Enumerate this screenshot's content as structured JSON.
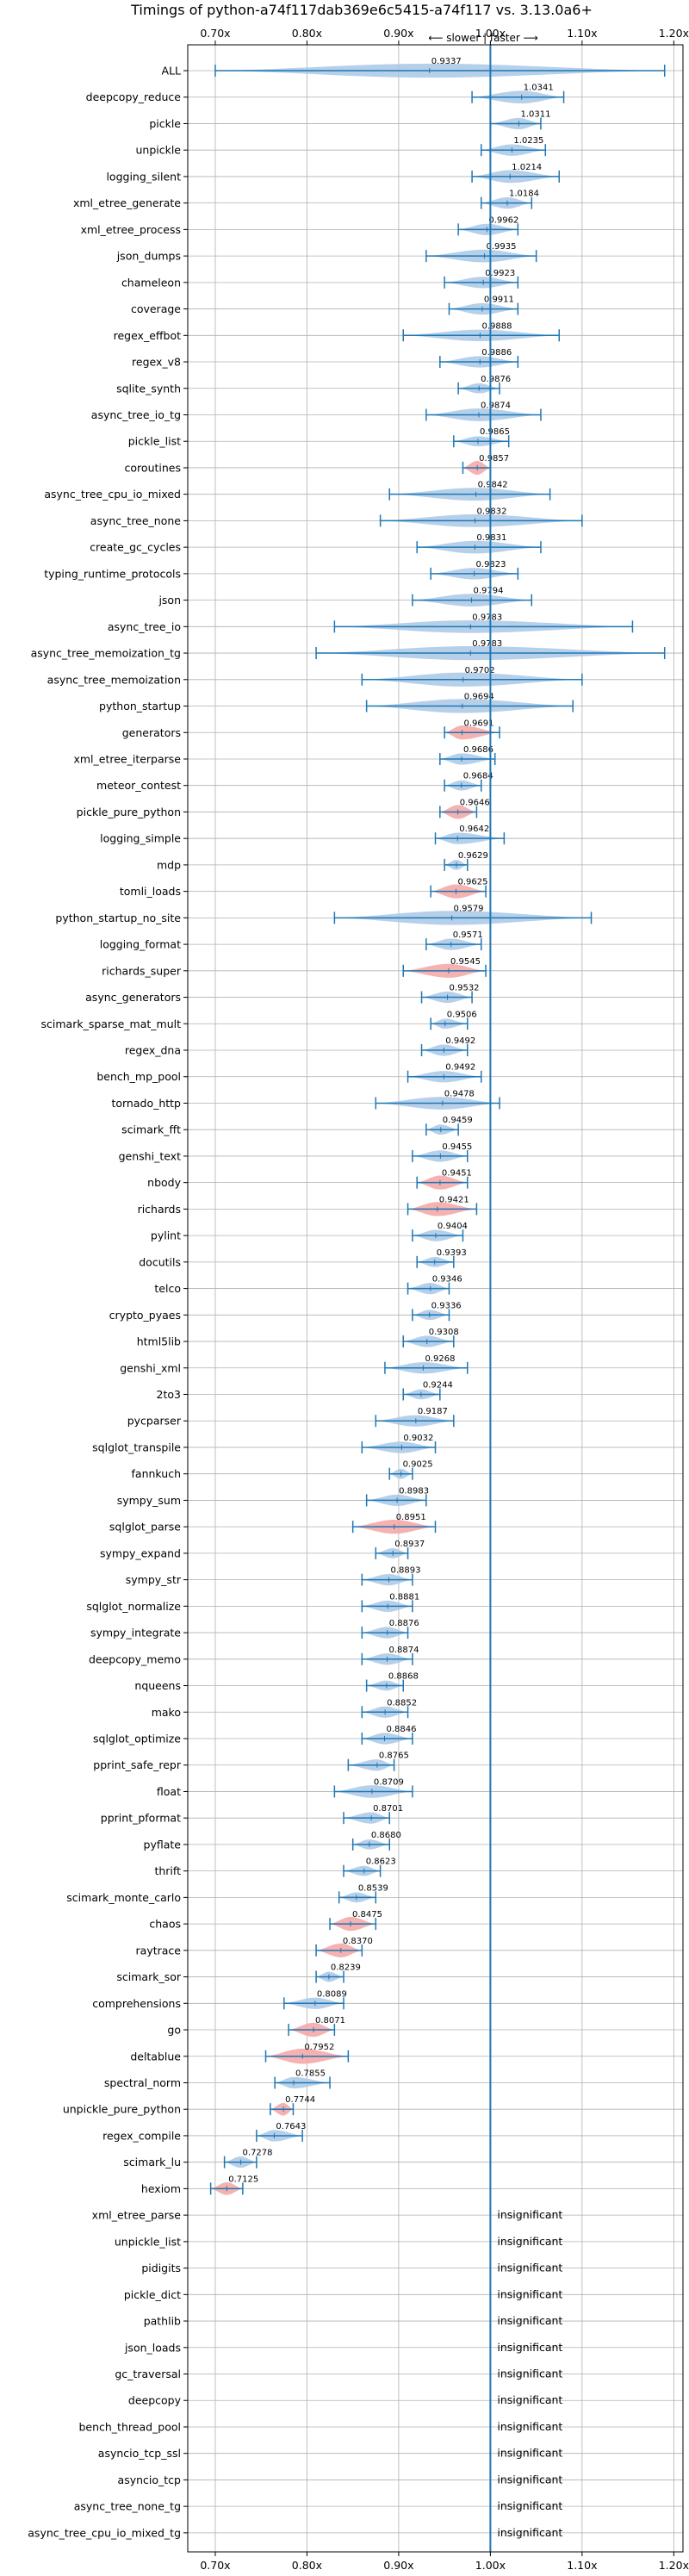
{
  "chart_data": {
    "type": "violin",
    "title": "Timings of python-a74f117dab369e6c5415-a74f117 vs. 3.13.0a6+",
    "direction_label": "⟵ slower | faster ⟶",
    "xlim": [
      0.67,
      1.21
    ],
    "x_ticks": [
      0.7,
      0.8,
      0.9,
      1.0,
      1.1,
      1.2
    ],
    "x_tick_labels": [
      "0.70x",
      "0.80x",
      "0.90x",
      "1.00x",
      "1.10x",
      "1.20x"
    ],
    "grid": true,
    "insignificant_label": "insignificant",
    "benchmarks": [
      {
        "name": "ALL",
        "value": 0.9337,
        "min": 0.7,
        "max": 1.19,
        "width": 0.55,
        "color": "blue"
      },
      {
        "name": "deepcopy_reduce",
        "value": 1.0341,
        "min": 0.98,
        "max": 1.08,
        "width": 0.5,
        "color": "blue"
      },
      {
        "name": "pickle",
        "value": 1.0311,
        "min": 1.0,
        "max": 1.055,
        "width": 0.45,
        "color": "blue"
      },
      {
        "name": "unpickle",
        "value": 1.0235,
        "min": 0.99,
        "max": 1.06,
        "width": 0.45,
        "color": "blue"
      },
      {
        "name": "logging_silent",
        "value": 1.0214,
        "min": 0.98,
        "max": 1.075,
        "width": 0.5,
        "color": "blue"
      },
      {
        "name": "xml_etree_generate",
        "value": 1.0184,
        "min": 0.99,
        "max": 1.045,
        "width": 0.45,
        "color": "blue"
      },
      {
        "name": "xml_etree_process",
        "value": 0.9962,
        "min": 0.965,
        "max": 1.03,
        "width": 0.45,
        "color": "blue"
      },
      {
        "name": "json_dumps",
        "value": 0.9935,
        "min": 0.93,
        "max": 1.05,
        "width": 0.5,
        "color": "blue"
      },
      {
        "name": "chameleon",
        "value": 0.9923,
        "min": 0.95,
        "max": 1.03,
        "width": 0.45,
        "color": "blue"
      },
      {
        "name": "coverage",
        "value": 0.9911,
        "min": 0.955,
        "max": 1.03,
        "width": 0.45,
        "color": "blue"
      },
      {
        "name": "regex_effbot",
        "value": 0.9888,
        "min": 0.905,
        "max": 1.075,
        "width": 0.45,
        "color": "blue"
      },
      {
        "name": "regex_v8",
        "value": 0.9886,
        "min": 0.945,
        "max": 1.03,
        "width": 0.45,
        "color": "blue"
      },
      {
        "name": "sqlite_synth",
        "value": 0.9876,
        "min": 0.965,
        "max": 1.01,
        "width": 0.4,
        "color": "blue"
      },
      {
        "name": "async_tree_io_tg",
        "value": 0.9874,
        "min": 0.93,
        "max": 1.055,
        "width": 0.5,
        "color": "blue"
      },
      {
        "name": "pickle_list",
        "value": 0.9865,
        "min": 0.96,
        "max": 1.02,
        "width": 0.4,
        "color": "blue"
      },
      {
        "name": "coroutines",
        "value": 0.9857,
        "min": 0.97,
        "max": 1.0,
        "width": 0.55,
        "color": "red"
      },
      {
        "name": "async_tree_cpu_io_mixed",
        "value": 0.9842,
        "min": 0.89,
        "max": 1.065,
        "width": 0.5,
        "color": "blue"
      },
      {
        "name": "async_tree_none",
        "value": 0.9832,
        "min": 0.88,
        "max": 1.1,
        "width": 0.5,
        "color": "blue"
      },
      {
        "name": "create_gc_cycles",
        "value": 0.9831,
        "min": 0.92,
        "max": 1.055,
        "width": 0.5,
        "color": "blue"
      },
      {
        "name": "typing_runtime_protocols",
        "value": 0.9823,
        "min": 0.935,
        "max": 1.03,
        "width": 0.45,
        "color": "blue"
      },
      {
        "name": "json",
        "value": 0.9794,
        "min": 0.915,
        "max": 1.045,
        "width": 0.5,
        "color": "blue"
      },
      {
        "name": "async_tree_io",
        "value": 0.9783,
        "min": 0.83,
        "max": 1.155,
        "width": 0.5,
        "color": "blue"
      },
      {
        "name": "async_tree_memoization_tg",
        "value": 0.9783,
        "min": 0.81,
        "max": 1.19,
        "width": 0.55,
        "color": "blue"
      },
      {
        "name": "async_tree_memoization",
        "value": 0.9702,
        "min": 0.86,
        "max": 1.1,
        "width": 0.55,
        "color": "blue"
      },
      {
        "name": "python_startup",
        "value": 0.9694,
        "min": 0.865,
        "max": 1.09,
        "width": 0.55,
        "color": "blue"
      },
      {
        "name": "generators",
        "value": 0.9691,
        "min": 0.95,
        "max": 1.01,
        "width": 0.55,
        "color": "red"
      },
      {
        "name": "xml_etree_iterparse",
        "value": 0.9686,
        "min": 0.945,
        "max": 1.005,
        "width": 0.45,
        "color": "blue"
      },
      {
        "name": "meteor_contest",
        "value": 0.9684,
        "min": 0.95,
        "max": 0.99,
        "width": 0.4,
        "color": "blue"
      },
      {
        "name": "pickle_pure_python",
        "value": 0.9646,
        "min": 0.945,
        "max": 0.985,
        "width": 0.55,
        "color": "red"
      },
      {
        "name": "logging_simple",
        "value": 0.9642,
        "min": 0.94,
        "max": 1.015,
        "width": 0.45,
        "color": "blue"
      },
      {
        "name": "mdp",
        "value": 0.9629,
        "min": 0.95,
        "max": 0.975,
        "width": 0.4,
        "color": "blue"
      },
      {
        "name": "tomli_loads",
        "value": 0.9625,
        "min": 0.935,
        "max": 0.995,
        "width": 0.55,
        "color": "red"
      },
      {
        "name": "python_startup_no_site",
        "value": 0.9579,
        "min": 0.83,
        "max": 1.11,
        "width": 0.55,
        "color": "blue"
      },
      {
        "name": "logging_format",
        "value": 0.9571,
        "min": 0.93,
        "max": 0.99,
        "width": 0.45,
        "color": "blue"
      },
      {
        "name": "richards_super",
        "value": 0.9545,
        "min": 0.905,
        "max": 0.995,
        "width": 0.55,
        "color": "red"
      },
      {
        "name": "async_generators",
        "value": 0.9532,
        "min": 0.925,
        "max": 0.98,
        "width": 0.45,
        "color": "blue"
      },
      {
        "name": "scimark_sparse_mat_mult",
        "value": 0.9506,
        "min": 0.935,
        "max": 0.975,
        "width": 0.4,
        "color": "blue"
      },
      {
        "name": "regex_dna",
        "value": 0.9492,
        "min": 0.925,
        "max": 0.975,
        "width": 0.45,
        "color": "blue"
      },
      {
        "name": "bench_mp_pool",
        "value": 0.9492,
        "min": 0.91,
        "max": 0.99,
        "width": 0.45,
        "color": "blue"
      },
      {
        "name": "tornado_http",
        "value": 0.9478,
        "min": 0.875,
        "max": 1.01,
        "width": 0.5,
        "color": "blue"
      },
      {
        "name": "scimark_fft",
        "value": 0.9459,
        "min": 0.93,
        "max": 0.965,
        "width": 0.4,
        "color": "blue"
      },
      {
        "name": "genshi_text",
        "value": 0.9455,
        "min": 0.915,
        "max": 0.975,
        "width": 0.45,
        "color": "blue"
      },
      {
        "name": "nbody",
        "value": 0.9451,
        "min": 0.92,
        "max": 0.975,
        "width": 0.55,
        "color": "red"
      },
      {
        "name": "richards",
        "value": 0.9421,
        "min": 0.91,
        "max": 0.985,
        "width": 0.55,
        "color": "red"
      },
      {
        "name": "pylint",
        "value": 0.9404,
        "min": 0.915,
        "max": 0.97,
        "width": 0.45,
        "color": "blue"
      },
      {
        "name": "docutils",
        "value": 0.9393,
        "min": 0.92,
        "max": 0.96,
        "width": 0.4,
        "color": "blue"
      },
      {
        "name": "telco",
        "value": 0.9346,
        "min": 0.91,
        "max": 0.955,
        "width": 0.45,
        "color": "blue"
      },
      {
        "name": "crypto_pyaes",
        "value": 0.9336,
        "min": 0.915,
        "max": 0.955,
        "width": 0.4,
        "color": "blue"
      },
      {
        "name": "html5lib",
        "value": 0.9308,
        "min": 0.905,
        "max": 0.96,
        "width": 0.45,
        "color": "blue"
      },
      {
        "name": "genshi_xml",
        "value": 0.9268,
        "min": 0.885,
        "max": 0.975,
        "width": 0.45,
        "color": "blue"
      },
      {
        "name": "2to3",
        "value": 0.9244,
        "min": 0.905,
        "max": 0.945,
        "width": 0.4,
        "color": "blue"
      },
      {
        "name": "pycparser",
        "value": 0.9187,
        "min": 0.875,
        "max": 0.96,
        "width": 0.45,
        "color": "blue"
      },
      {
        "name": "sqlglot_transpile",
        "value": 0.9032,
        "min": 0.86,
        "max": 0.94,
        "width": 0.45,
        "color": "blue"
      },
      {
        "name": "fannkuch",
        "value": 0.9025,
        "min": 0.89,
        "max": 0.915,
        "width": 0.4,
        "color": "blue"
      },
      {
        "name": "sympy_sum",
        "value": 0.8983,
        "min": 0.865,
        "max": 0.93,
        "width": 0.45,
        "color": "blue"
      },
      {
        "name": "sqlglot_parse",
        "value": 0.8951,
        "min": 0.85,
        "max": 0.94,
        "width": 0.55,
        "color": "red"
      },
      {
        "name": "sympy_expand",
        "value": 0.8937,
        "min": 0.875,
        "max": 0.91,
        "width": 0.4,
        "color": "blue"
      },
      {
        "name": "sympy_str",
        "value": 0.8893,
        "min": 0.86,
        "max": 0.915,
        "width": 0.45,
        "color": "blue"
      },
      {
        "name": "sqlglot_normalize",
        "value": 0.8881,
        "min": 0.86,
        "max": 0.915,
        "width": 0.45,
        "color": "blue"
      },
      {
        "name": "sympy_integrate",
        "value": 0.8876,
        "min": 0.86,
        "max": 0.91,
        "width": 0.45,
        "color": "blue"
      },
      {
        "name": "deepcopy_memo",
        "value": 0.8874,
        "min": 0.86,
        "max": 0.915,
        "width": 0.45,
        "color": "blue"
      },
      {
        "name": "nqueens",
        "value": 0.8868,
        "min": 0.865,
        "max": 0.905,
        "width": 0.4,
        "color": "blue"
      },
      {
        "name": "mako",
        "value": 0.8852,
        "min": 0.86,
        "max": 0.91,
        "width": 0.45,
        "color": "blue"
      },
      {
        "name": "sqlglot_optimize",
        "value": 0.8846,
        "min": 0.86,
        "max": 0.915,
        "width": 0.45,
        "color": "blue"
      },
      {
        "name": "pprint_safe_repr",
        "value": 0.8765,
        "min": 0.845,
        "max": 0.895,
        "width": 0.45,
        "color": "blue"
      },
      {
        "name": "float",
        "value": 0.8709,
        "min": 0.83,
        "max": 0.915,
        "width": 0.5,
        "color": "blue"
      },
      {
        "name": "pprint_pformat",
        "value": 0.8701,
        "min": 0.84,
        "max": 0.89,
        "width": 0.45,
        "color": "blue"
      },
      {
        "name": "pyflate",
        "value": 0.868,
        "min": 0.85,
        "max": 0.89,
        "width": 0.4,
        "color": "blue"
      },
      {
        "name": "thrift",
        "value": 0.8623,
        "min": 0.84,
        "max": 0.88,
        "width": 0.4,
        "color": "blue"
      },
      {
        "name": "scimark_monte_carlo",
        "value": 0.8539,
        "min": 0.835,
        "max": 0.875,
        "width": 0.4,
        "color": "blue"
      },
      {
        "name": "chaos",
        "value": 0.8475,
        "min": 0.825,
        "max": 0.875,
        "width": 0.55,
        "color": "red"
      },
      {
        "name": "raytrace",
        "value": 0.837,
        "min": 0.81,
        "max": 0.86,
        "width": 0.55,
        "color": "red"
      },
      {
        "name": "scimark_sor",
        "value": 0.8239,
        "min": 0.81,
        "max": 0.84,
        "width": 0.4,
        "color": "blue"
      },
      {
        "name": "comprehensions",
        "value": 0.8089,
        "min": 0.775,
        "max": 0.84,
        "width": 0.45,
        "color": "blue"
      },
      {
        "name": "go",
        "value": 0.8071,
        "min": 0.78,
        "max": 0.83,
        "width": 0.55,
        "color": "red"
      },
      {
        "name": "deltablue",
        "value": 0.7952,
        "min": 0.755,
        "max": 0.845,
        "width": 0.6,
        "color": "red"
      },
      {
        "name": "spectral_norm",
        "value": 0.7855,
        "min": 0.765,
        "max": 0.825,
        "width": 0.45,
        "color": "blue"
      },
      {
        "name": "unpickle_pure_python",
        "value": 0.7744,
        "min": 0.76,
        "max": 0.785,
        "width": 0.5,
        "color": "red"
      },
      {
        "name": "regex_compile",
        "value": 0.7643,
        "min": 0.745,
        "max": 0.795,
        "width": 0.45,
        "color": "blue"
      },
      {
        "name": "scimark_lu",
        "value": 0.7278,
        "min": 0.71,
        "max": 0.745,
        "width": 0.45,
        "color": "blue"
      },
      {
        "name": "hexiom",
        "value": 0.7125,
        "min": 0.695,
        "max": 0.73,
        "width": 0.5,
        "color": "red"
      },
      {
        "name": "xml_etree_parse",
        "value": null,
        "insignificant": true
      },
      {
        "name": "unpickle_list",
        "value": null,
        "insignificant": true
      },
      {
        "name": "pidigits",
        "value": null,
        "insignificant": true
      },
      {
        "name": "pickle_dict",
        "value": null,
        "insignificant": true
      },
      {
        "name": "pathlib",
        "value": null,
        "insignificant": true
      },
      {
        "name": "json_loads",
        "value": null,
        "insignificant": true
      },
      {
        "name": "gc_traversal",
        "value": null,
        "insignificant": true
      },
      {
        "name": "deepcopy",
        "value": null,
        "insignificant": true
      },
      {
        "name": "bench_thread_pool",
        "value": null,
        "insignificant": true
      },
      {
        "name": "asyncio_tcp_ssl",
        "value": null,
        "insignificant": true
      },
      {
        "name": "asyncio_tcp",
        "value": null,
        "insignificant": true
      },
      {
        "name": "async_tree_none_tg",
        "value": null,
        "insignificant": true
      },
      {
        "name": "async_tree_cpu_io_mixed_tg",
        "value": null,
        "insignificant": true
      }
    ]
  },
  "colors": {
    "blue_fill": "#a9c8e6",
    "blue_line": "#1f77b4",
    "red_fill": "#f4a3a3",
    "grid": "#b0b0b0",
    "text": "#000000"
  }
}
